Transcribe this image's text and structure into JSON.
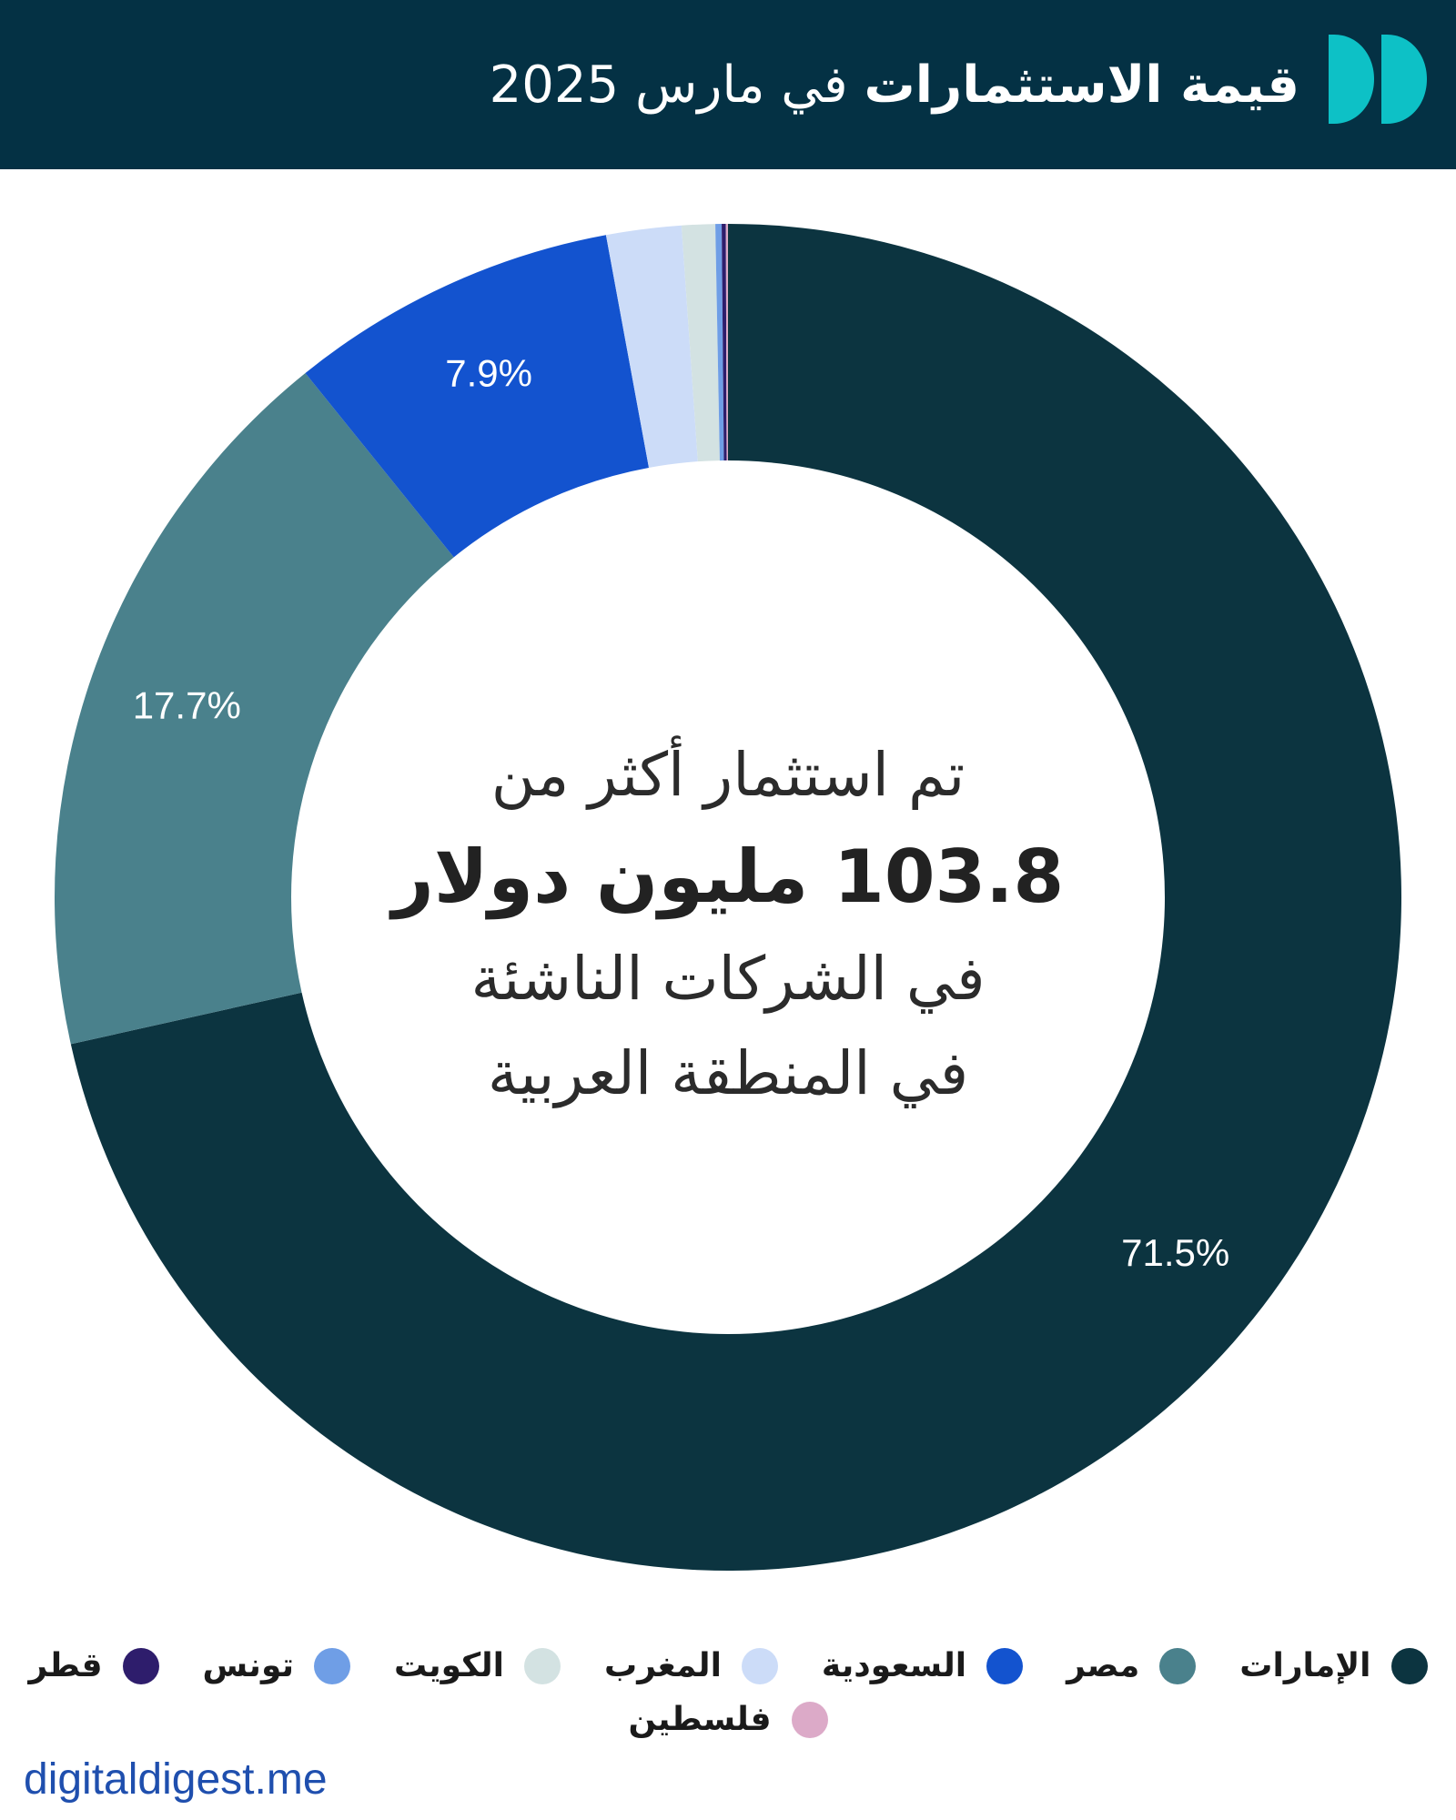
{
  "header": {
    "title_bold": "قيمة الاستثمارات",
    "title_light": "في مارس 2025",
    "background_color": "#043144",
    "logo_color": "#0dc1c6"
  },
  "center_text": {
    "line1": "تم استثمار أكثر من",
    "line2": "103.8 مليون دولار",
    "line3": "في الشركات الناشئة",
    "line4": "في المنطقة العربية"
  },
  "chart_data": {
    "type": "pie",
    "donut": true,
    "categories": [
      "الإمارات",
      "مصر",
      "السعودية",
      "المغرب",
      "الكويت",
      "تونس",
      "قطر",
      "فلسطين"
    ],
    "values": [
      71.5,
      17.7,
      7.9,
      1.8,
      0.8,
      0.15,
      0.1,
      0.05
    ],
    "value_labels": [
      "71.5%",
      "17.7%",
      "7.9%",
      "",
      "",
      "",
      "",
      ""
    ],
    "colors": [
      "#0c3440",
      "#4a818c",
      "#1353cf",
      "#ccdcf8",
      "#d3e2e2",
      "#6f9ee6",
      "#2e1d6c",
      "#dcaac8"
    ],
    "legend_position": "bottom"
  },
  "footer": {
    "source": "digitaldigest.me"
  }
}
